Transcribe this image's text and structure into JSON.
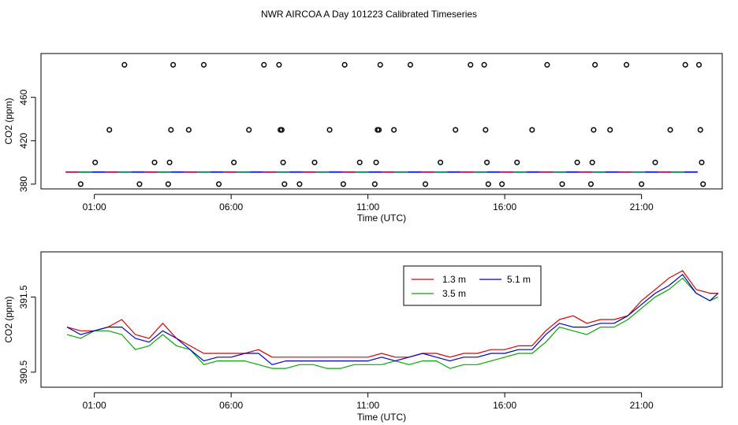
{
  "figure": {
    "title": "NWR AIRCOA A  Day 101223  Calibrated Timeseries"
  },
  "chart_data": [
    {
      "type": "scatter",
      "xlabel": "Time (UTC)",
      "ylabel": "CO2 (ppm)",
      "x_ticks": [
        "01:00",
        "06:00",
        "11:00",
        "16:00",
        "21:00"
      ],
      "x_tick_hours": [
        1,
        6,
        11,
        16,
        21
      ],
      "y_ticks": [
        "380",
        "420",
        "460"
      ],
      "y_tick_values": [
        380,
        420,
        460
      ],
      "xlim": [
        -0.95,
        23.95
      ],
      "ylim": [
        375.6,
        500.4
      ],
      "marker_color": "#000000",
      "points": [
        [
          0.5,
          380
        ],
        [
          1.03,
          400
        ],
        [
          1.55,
          430
        ],
        [
          2.1,
          490
        ],
        [
          2.65,
          380
        ],
        [
          3.2,
          400
        ],
        [
          3.7,
          380
        ],
        [
          3.75,
          400
        ],
        [
          3.8,
          430
        ],
        [
          3.88,
          490
        ],
        [
          4.45,
          430
        ],
        [
          5.0,
          490
        ],
        [
          5.55,
          380
        ],
        [
          6.1,
          400
        ],
        [
          6.65,
          430
        ],
        [
          7.2,
          490
        ],
        [
          7.75,
          490
        ],
        [
          7.8,
          430
        ],
        [
          7.85,
          430
        ],
        [
          7.9,
          400
        ],
        [
          7.95,
          380
        ],
        [
          8.5,
          380
        ],
        [
          9.05,
          400
        ],
        [
          9.6,
          430
        ],
        [
          10.1,
          380
        ],
        [
          10.15,
          490
        ],
        [
          10.7,
          400
        ],
        [
          11.25,
          380
        ],
        [
          11.3,
          400
        ],
        [
          11.35,
          430
        ],
        [
          11.4,
          430
        ],
        [
          11.45,
          490
        ],
        [
          11.95,
          430
        ],
        [
          12.55,
          490
        ],
        [
          13.1,
          380
        ],
        [
          13.65,
          400
        ],
        [
          14.2,
          430
        ],
        [
          14.75,
          490
        ],
        [
          15.25,
          490
        ],
        [
          15.3,
          430
        ],
        [
          15.35,
          400
        ],
        [
          15.4,
          380
        ],
        [
          15.9,
          380
        ],
        [
          16.45,
          400
        ],
        [
          17.0,
          430
        ],
        [
          17.55,
          490
        ],
        [
          18.1,
          380
        ],
        [
          18.65,
          400
        ],
        [
          19.15,
          380
        ],
        [
          19.2,
          400
        ],
        [
          19.25,
          430
        ],
        [
          19.3,
          490
        ],
        [
          19.85,
          430
        ],
        [
          20.45,
          490
        ],
        [
          21.0,
          380
        ],
        [
          21.5,
          400
        ],
        [
          22.05,
          430
        ],
        [
          22.6,
          490
        ],
        [
          23.1,
          490
        ],
        [
          23.15,
          430
        ],
        [
          23.2,
          400
        ],
        [
          23.25,
          380
        ]
      ],
      "baseline": {
        "y": 391.2,
        "x_range": [
          -0.05,
          23.05
        ],
        "colors": [
          "#dd0000",
          "#00aa00",
          "#0000cc"
        ]
      }
    },
    {
      "type": "line",
      "xlabel": "Time (UTC)",
      "ylabel": "CO2 (ppm)",
      "x_ticks": [
        "01:00",
        "06:00",
        "11:00",
        "16:00",
        "21:00"
      ],
      "x_tick_hours": [
        1,
        6,
        11,
        16,
        21
      ],
      "y_ticks": [
        "390.5",
        "391.5"
      ],
      "y_tick_values": [
        390.5,
        391.5
      ],
      "xlim": [
        -0.95,
        23.95
      ],
      "ylim": [
        390.3,
        392.1
      ],
      "legend": {
        "position": "top-right",
        "entries": [
          "1.3 m",
          "3.5 m",
          "5.1 m"
        ]
      },
      "series": [
        {
          "name": "1.3 m",
          "color": "#dd0000",
          "points": [
            [
              0.0,
              391.1
            ],
            [
              0.5,
              391.05
            ],
            [
              1.0,
              391.05
            ],
            [
              1.5,
              391.1
            ],
            [
              2.0,
              391.2
            ],
            [
              2.5,
              391.0
            ],
            [
              3.0,
              390.95
            ],
            [
              3.5,
              391.15
            ],
            [
              4.0,
              390.95
            ],
            [
              4.5,
              390.85
            ],
            [
              5.0,
              390.75
            ],
            [
              5.5,
              390.75
            ],
            [
              6.0,
              390.75
            ],
            [
              6.5,
              390.75
            ],
            [
              7.0,
              390.8
            ],
            [
              7.5,
              390.7
            ],
            [
              8.0,
              390.7
            ],
            [
              8.5,
              390.7
            ],
            [
              9.0,
              390.7
            ],
            [
              9.5,
              390.7
            ],
            [
              10.0,
              390.7
            ],
            [
              10.5,
              390.7
            ],
            [
              11.0,
              390.7
            ],
            [
              11.5,
              390.75
            ],
            [
              12.0,
              390.7
            ],
            [
              12.5,
              390.7
            ],
            [
              13.0,
              390.75
            ],
            [
              13.5,
              390.75
            ],
            [
              14.0,
              390.7
            ],
            [
              14.5,
              390.75
            ],
            [
              15.0,
              390.75
            ],
            [
              15.5,
              390.8
            ],
            [
              16.0,
              390.8
            ],
            [
              16.5,
              390.85
            ],
            [
              17.0,
              390.85
            ],
            [
              17.5,
              391.05
            ],
            [
              18.0,
              391.2
            ],
            [
              18.5,
              391.25
            ],
            [
              19.0,
              391.15
            ],
            [
              19.5,
              391.2
            ],
            [
              20.0,
              391.2
            ],
            [
              20.5,
              391.25
            ],
            [
              21.0,
              391.45
            ],
            [
              21.5,
              391.6
            ],
            [
              22.0,
              391.75
            ],
            [
              22.5,
              391.85
            ],
            [
              23.0,
              391.6
            ],
            [
              23.5,
              391.55
            ],
            [
              23.8,
              391.55
            ]
          ]
        },
        {
          "name": "3.5 m",
          "color": "#00aa00",
          "points": [
            [
              0.0,
              391.0
            ],
            [
              0.5,
              390.95
            ],
            [
              1.0,
              391.05
            ],
            [
              1.5,
              391.05
            ],
            [
              2.0,
              391.0
            ],
            [
              2.5,
              390.8
            ],
            [
              3.0,
              390.85
            ],
            [
              3.5,
              391.0
            ],
            [
              4.0,
              390.85
            ],
            [
              4.5,
              390.8
            ],
            [
              5.0,
              390.6
            ],
            [
              5.5,
              390.65
            ],
            [
              6.0,
              390.65
            ],
            [
              6.5,
              390.65
            ],
            [
              7.0,
              390.6
            ],
            [
              7.5,
              390.55
            ],
            [
              8.0,
              390.55
            ],
            [
              8.5,
              390.6
            ],
            [
              9.0,
              390.6
            ],
            [
              9.5,
              390.55
            ],
            [
              10.0,
              390.55
            ],
            [
              10.5,
              390.6
            ],
            [
              11.0,
              390.6
            ],
            [
              11.5,
              390.6
            ],
            [
              12.0,
              390.65
            ],
            [
              12.5,
              390.6
            ],
            [
              13.0,
              390.65
            ],
            [
              13.5,
              390.65
            ],
            [
              14.0,
              390.55
            ],
            [
              14.5,
              390.6
            ],
            [
              15.0,
              390.6
            ],
            [
              15.5,
              390.65
            ],
            [
              16.0,
              390.7
            ],
            [
              16.5,
              390.75
            ],
            [
              17.0,
              390.75
            ],
            [
              17.5,
              390.9
            ],
            [
              18.0,
              391.1
            ],
            [
              18.5,
              391.05
            ],
            [
              19.0,
              391.0
            ],
            [
              19.5,
              391.1
            ],
            [
              20.0,
              391.1
            ],
            [
              20.5,
              391.2
            ],
            [
              21.0,
              391.35
            ],
            [
              21.5,
              391.5
            ],
            [
              22.0,
              391.6
            ],
            [
              22.5,
              391.75
            ],
            [
              23.0,
              391.55
            ],
            [
              23.5,
              391.45
            ],
            [
              23.8,
              391.5
            ]
          ]
        },
        {
          "name": "5.1 m",
          "color": "#0000cc",
          "points": [
            [
              0.0,
              391.1
            ],
            [
              0.5,
              391.0
            ],
            [
              1.0,
              391.05
            ],
            [
              1.5,
              391.1
            ],
            [
              2.0,
              391.1
            ],
            [
              2.5,
              390.95
            ],
            [
              3.0,
              390.9
            ],
            [
              3.5,
              391.05
            ],
            [
              4.0,
              390.95
            ],
            [
              4.5,
              390.8
            ],
            [
              5.0,
              390.65
            ],
            [
              5.5,
              390.7
            ],
            [
              6.0,
              390.7
            ],
            [
              6.5,
              390.75
            ],
            [
              7.0,
              390.75
            ],
            [
              7.5,
              390.6
            ],
            [
              8.0,
              390.65
            ],
            [
              8.5,
              390.65
            ],
            [
              9.0,
              390.65
            ],
            [
              9.5,
              390.65
            ],
            [
              10.0,
              390.65
            ],
            [
              10.5,
              390.65
            ],
            [
              11.0,
              390.65
            ],
            [
              11.5,
              390.7
            ],
            [
              12.0,
              390.65
            ],
            [
              12.5,
              390.7
            ],
            [
              13.0,
              390.75
            ],
            [
              13.5,
              390.7
            ],
            [
              14.0,
              390.65
            ],
            [
              14.5,
              390.7
            ],
            [
              15.0,
              390.7
            ],
            [
              15.5,
              390.75
            ],
            [
              16.0,
              390.75
            ],
            [
              16.5,
              390.8
            ],
            [
              17.0,
              390.8
            ],
            [
              17.5,
              391.0
            ],
            [
              18.0,
              391.15
            ],
            [
              18.5,
              391.1
            ],
            [
              19.0,
              391.1
            ],
            [
              19.5,
              391.15
            ],
            [
              20.0,
              391.15
            ],
            [
              20.5,
              391.25
            ],
            [
              21.0,
              391.4
            ],
            [
              21.5,
              391.55
            ],
            [
              22.0,
              391.65
            ],
            [
              22.5,
              391.8
            ],
            [
              23.0,
              391.55
            ],
            [
              23.5,
              391.45
            ],
            [
              23.8,
              391.55
            ]
          ]
        }
      ]
    }
  ]
}
